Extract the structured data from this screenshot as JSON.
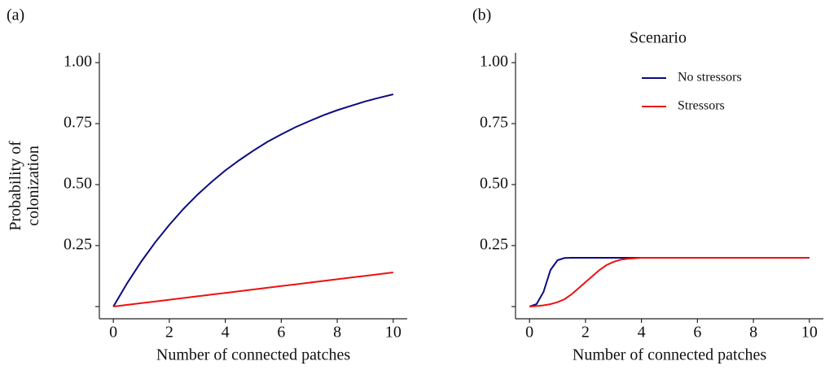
{
  "chart_data": [
    {
      "type": "line",
      "title": "(a)",
      "xlabel": "Number of connected patches",
      "ylabel": [
        "Probability of",
        "colonization"
      ],
      "x": [
        0,
        0.5,
        1,
        1.5,
        2,
        2.5,
        3,
        3.5,
        4,
        4.5,
        5,
        5.5,
        6,
        6.5,
        7,
        7.5,
        8,
        8.5,
        9,
        9.5,
        10
      ],
      "series": [
        {
          "color": "#0b0b80",
          "values": [
            0,
            0.097,
            0.185,
            0.264,
            0.335,
            0.4,
            0.458,
            0.51,
            0.558,
            0.6,
            0.639,
            0.675,
            0.706,
            0.735,
            0.76,
            0.784,
            0.805,
            0.823,
            0.841,
            0.856,
            0.87
          ]
        },
        {
          "color": "#ee1111",
          "values": [
            0,
            0.007,
            0.014,
            0.021,
            0.028,
            0.035,
            0.042,
            0.049,
            0.056,
            0.063,
            0.07,
            0.077,
            0.084,
            0.091,
            0.098,
            0.105,
            0.112,
            0.119,
            0.126,
            0.133,
            0.14
          ]
        }
      ],
      "xlim": [
        -0.5,
        10.5
      ],
      "ylim": [
        -0.05,
        1.04
      ],
      "xticks": [
        0,
        2,
        4,
        6,
        8,
        10
      ],
      "yticks": [
        {
          "value": 0,
          "label": null
        },
        {
          "value": 0.25,
          "label": "0.25"
        },
        {
          "value": 0.5,
          "label": "0.50"
        },
        {
          "value": 0.75,
          "label": "0.75"
        },
        {
          "value": 1,
          "label": "1.00"
        }
      ]
    },
    {
      "type": "line",
      "title": "(b)",
      "xlabel": "Number of connected patches",
      "x": [
        0,
        0.25,
        0.5,
        0.75,
        1,
        1.25,
        1.5,
        1.75,
        2,
        2.25,
        2.5,
        2.75,
        3,
        3.25,
        3.5,
        3.75,
        4,
        5,
        6,
        7,
        8,
        9,
        10
      ],
      "series": [
        {
          "name": "No stressors",
          "color": "#0b0b80",
          "values": [
            0,
            0.01,
            0.06,
            0.15,
            0.19,
            0.199,
            0.2,
            0.2,
            0.2,
            0.2,
            0.2,
            0.2,
            0.2,
            0.2,
            0.2,
            0.2,
            0.2,
            0.2,
            0.2,
            0.2,
            0.2,
            0.2,
            0.2
          ]
        },
        {
          "name": "Stressors",
          "color": "#ee1111",
          "values": [
            0,
            0.002,
            0.005,
            0.01,
            0.018,
            0.03,
            0.05,
            0.075,
            0.1,
            0.125,
            0.15,
            0.17,
            0.183,
            0.192,
            0.196,
            0.198,
            0.2,
            0.2,
            0.2,
            0.2,
            0.2,
            0.2,
            0.2
          ]
        }
      ],
      "legend": {
        "title": "Scenario",
        "position": "top-right"
      },
      "xlim": [
        -0.5,
        10.5
      ],
      "ylim": [
        -0.05,
        1.04
      ],
      "xticks": [
        0,
        2,
        4,
        6,
        8,
        10
      ],
      "yticks": [
        {
          "value": 0,
          "label": null
        },
        {
          "value": 0.25,
          "label": "0.25"
        },
        {
          "value": 0.5,
          "label": "0.50"
        },
        {
          "value": 0.75,
          "label": "0.75"
        },
        {
          "value": 1,
          "label": "1.00"
        }
      ]
    }
  ]
}
